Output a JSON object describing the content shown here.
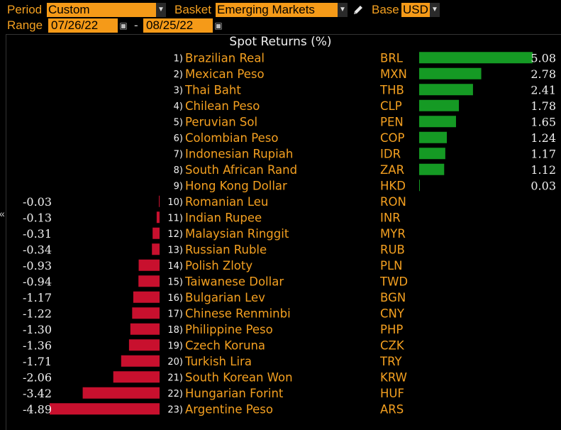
{
  "toolbar": {
    "period_label": "Period",
    "period_value": "Custom",
    "basket_label": "Basket",
    "basket_value": "Emerging Markets",
    "base_label": "Base",
    "base_value": "USD",
    "range_label": "Range",
    "range_start": "07/26/22",
    "range_end": "08/25/22",
    "range_dash": "-"
  },
  "colors": {
    "positive": "#159a24",
    "negative": "#c8102e",
    "label_text": "#f4a020",
    "value_text": "#f0f0f0",
    "accent": "#f59a18"
  },
  "chart_data": {
    "type": "bar",
    "title": "Spot Returns (%)",
    "series": [
      {
        "values": [
          5.08,
          2.78,
          2.41,
          1.78,
          1.65,
          1.24,
          1.17,
          1.12,
          0.03,
          -0.03,
          -0.13,
          -0.31,
          -0.34,
          -0.93,
          -0.94,
          -1.17,
          -1.22,
          -1.3,
          -1.36,
          -1.71,
          -2.06,
          -3.42,
          -4.89
        ]
      }
    ],
    "rank": [
      "1)",
      "2)",
      "3)",
      "4)",
      "5)",
      "6)",
      "7)",
      "8)",
      "9)",
      "10)",
      "11)",
      "12)",
      "13)",
      "14)",
      "15)",
      "16)",
      "17)",
      "18)",
      "19)",
      "20)",
      "21)",
      "22)",
      "23)"
    ],
    "categories": [
      "Brazilian Real",
      "Mexican Peso",
      "Thai Baht",
      "Chilean Peso",
      "Peruvian Sol",
      "Colombian Peso",
      "Indonesian Rupiah",
      "South African Rand",
      "Hong Kong Dollar",
      "Romanian Leu",
      "Indian Rupee",
      "Malaysian Ringgit",
      "Russian Ruble",
      "Polish Zloty",
      "Taiwanese Dollar",
      "Bulgarian Lev",
      "Chinese Renminbi",
      "Philippine Peso",
      "Czech Koruna",
      "Turkish Lira",
      "South Korean Won",
      "Hungarian Forint",
      "Argentine Peso"
    ],
    "codes": [
      "BRL",
      "MXN",
      "THB",
      "CLP",
      "PEN",
      "COP",
      "IDR",
      "ZAR",
      "HKD",
      "RON",
      "INR",
      "MYR",
      "RUB",
      "PLN",
      "TWD",
      "BGN",
      "CNY",
      "PHP",
      "CZK",
      "TRY",
      "KRW",
      "HUF",
      "ARS"
    ],
    "value_labels": [
      "5.08",
      "2.78",
      "2.41",
      "1.78",
      "1.65",
      "1.24",
      "1.17",
      "1.12",
      "0.03",
      "-0.03",
      "-0.13",
      "-0.31",
      "-0.34",
      "-0.93",
      "-0.94",
      "-1.17",
      "-1.22",
      "-1.30",
      "-1.36",
      "-1.71",
      "-2.06",
      "-3.42",
      "-4.89"
    ],
    "xlim": [
      -5.2,
      5.08
    ]
  }
}
